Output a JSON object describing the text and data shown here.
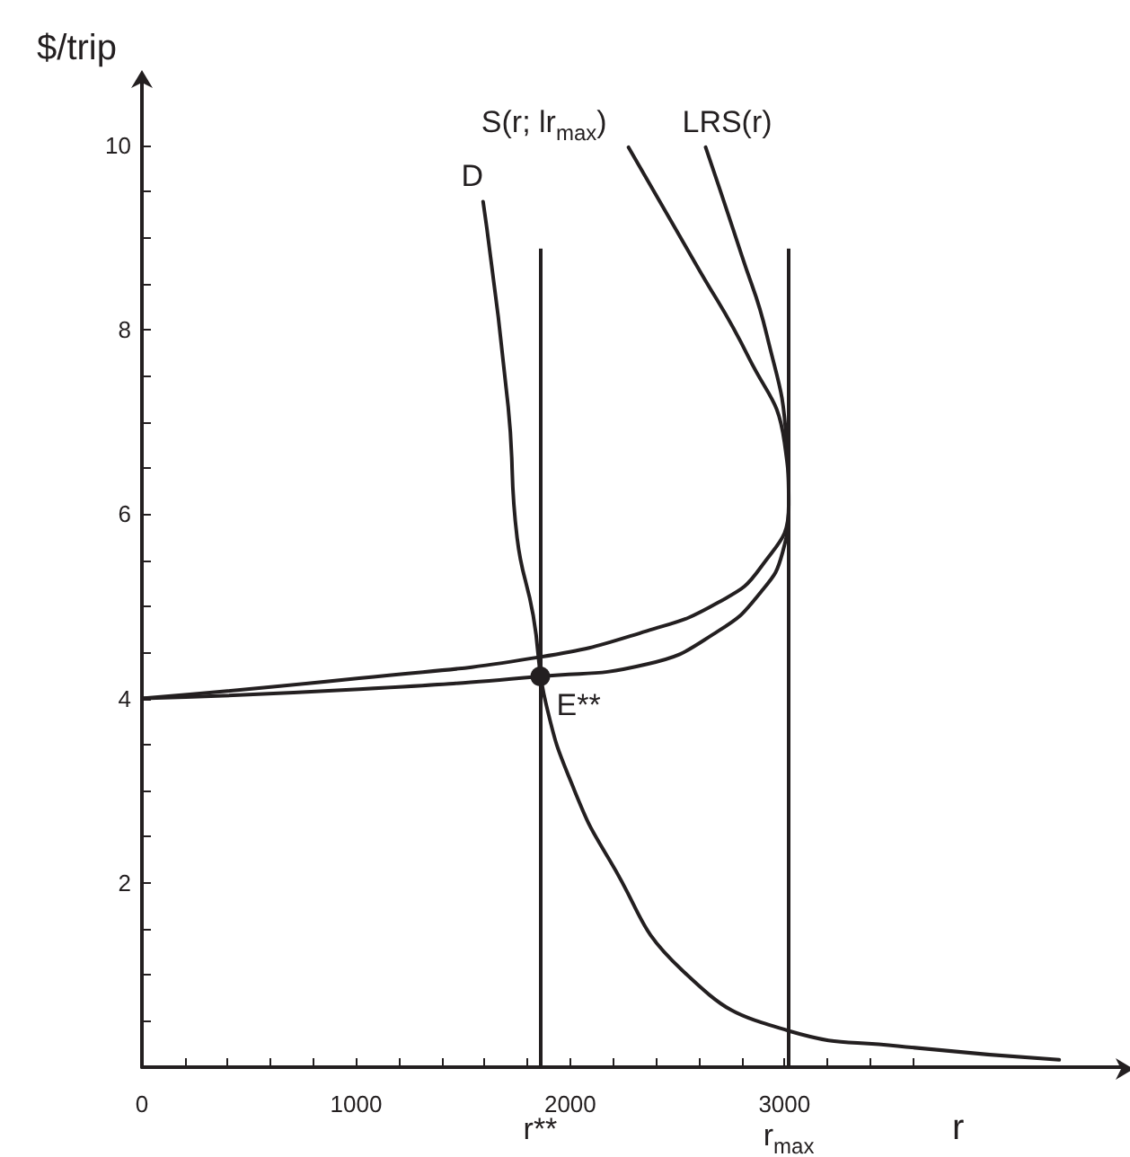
{
  "chart_data": {
    "type": "line",
    "xlabel": "r",
    "ylabel": "$/trip",
    "xlim": [
      0,
      4580
    ],
    "ylim": [
      0,
      10.7
    ],
    "xticks": [
      0,
      {
        "value": 200,
        "label": null
      },
      {
        "value": 400,
        "label": null
      },
      {
        "value": 600,
        "label": null
      },
      {
        "value": 800,
        "label": null
      },
      1000,
      {
        "value": 1200,
        "label": null
      },
      {
        "value": 1400,
        "label": null
      },
      {
        "value": 1600,
        "label": null
      },
      {
        "value": 1800,
        "label": null
      },
      2000,
      {
        "value": 2200,
        "label": null
      },
      {
        "value": 2400,
        "label": null
      },
      {
        "value": 2600,
        "label": null
      },
      {
        "value": 2800,
        "label": null
      },
      3000,
      {
        "value": 3200,
        "label": null
      },
      {
        "value": 3400,
        "label": null
      },
      {
        "value": 3600,
        "label": null
      }
    ],
    "yticks": [
      {
        "value": 0.5,
        "label": null
      },
      {
        "value": 1,
        "label": null
      },
      {
        "value": 1.5,
        "label": null
      },
      2,
      {
        "value": 2.5,
        "label": null
      },
      {
        "value": 3,
        "label": null
      },
      {
        "value": 3.5,
        "label": null
      },
      4,
      {
        "value": 4.5,
        "label": null
      },
      {
        "value": 5,
        "label": null
      },
      {
        "value": 5.5,
        "label": null
      },
      6,
      {
        "value": 6.5,
        "label": null
      },
      {
        "value": 7,
        "label": null
      },
      {
        "value": 7.5,
        "label": null
      },
      8,
      {
        "value": 8.5,
        "label": null
      },
      {
        "value": 9,
        "label": null
      },
      {
        "value": 9.5,
        "label": null
      },
      10
    ],
    "grid": false,
    "legend": false,
    "marker": "none",
    "line_style": "solid",
    "series": [
      {
        "name": "D",
        "color": "#231f20",
        "x": [
          4283,
          3529,
          3026,
          2523,
          2188,
          2020,
          1886,
          1827,
          1752,
          1710,
          1593
        ],
        "values": [
          0.08,
          0.23,
          0.39,
          1.05,
          2.23,
          3.0,
          3.95,
          4.9,
          5.74,
          7.17,
          9.39
        ]
      },
      {
        "name": "S(r; lr$_{max}$)",
        "color": "#231f20",
        "x": [
          0,
          1014,
          1860,
          2355,
          2690,
          2892,
          2992,
          3020,
          3000,
          2833,
          2582,
          2272
        ],
        "values": [
          4,
          4.1,
          4.24,
          4.37,
          4.73,
          5.16,
          5.59,
          6.1,
          6.78,
          7.7,
          8.73,
          9.98
        ]
      },
      {
        "name": "LRS(r)",
        "color": "#231f20",
        "x": [
          0,
          1014,
          1860,
          2355,
          2690,
          2892,
          3020,
          3010,
          2917,
          2800,
          2632
        ],
        "values": [
          4,
          4.22,
          4.45,
          4.73,
          5.04,
          5.43,
          6.1,
          6.78,
          7.95,
          8.81,
          9.98
        ]
      },
      {
        "type": "scatter",
        "marker": "circle",
        "color": "#231f20",
        "x": [
          1860
        ],
        "values": [
          4.24
        ]
      }
    ],
    "ref_lines": [
      {
        "axis": "x",
        "value": 1860,
        "label": "r**",
        "color": "#231f20"
      },
      {
        "axis": "x",
        "value": 3020,
        "label": "r$_{max}$",
        "color": "#231f20"
      }
    ],
    "annotations": [
      {
        "text": "E**",
        "x": 1860,
        "y": 4.24
      }
    ]
  }
}
